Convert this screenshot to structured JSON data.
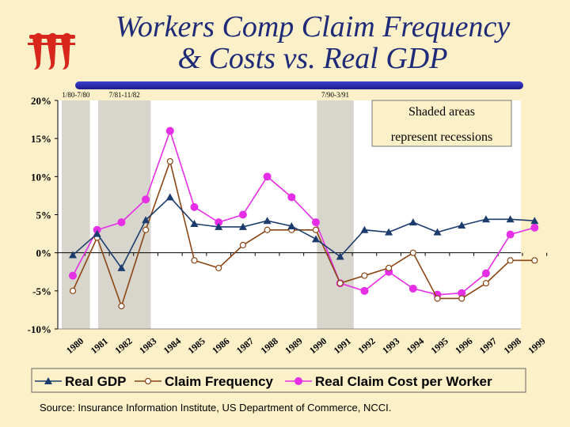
{
  "title": {
    "line1": "Workers Comp Claim Frequency",
    "line2": "& Costs vs. Real GDP"
  },
  "logo": {
    "name": "iii-logo",
    "color": "#d9261c"
  },
  "source": "Source: Insurance Information Institute, US Department of Commerce, NCCI.",
  "shaded_note": {
    "line1": "Shaded areas",
    "line2": "represent recessions"
  },
  "chart_data": {
    "type": "line",
    "title": "Workers Comp Claim Frequency & Costs vs. Real GDP",
    "categories": [
      "1980",
      "1981",
      "1982",
      "1983",
      "1984",
      "1985",
      "1986",
      "1987",
      "1988",
      "1989",
      "1990",
      "1991",
      "1992",
      "1993",
      "1994",
      "1995",
      "1996",
      "1997",
      "1998",
      "1999"
    ],
    "ylim": [
      -10,
      20
    ],
    "yticks": [
      {
        "v": 20,
        "label": "20%"
      },
      {
        "v": 15,
        "label": "15%"
      },
      {
        "v": 10,
        "label": "10%"
      },
      {
        "v": 5,
        "label": "5%"
      },
      {
        "v": 0,
        "label": "0%"
      },
      {
        "v": -5,
        "label": "-5%"
      },
      {
        "v": -10,
        "label": "-10%"
      }
    ],
    "recessions": [
      {
        "label": "1/80-7/80",
        "start": 0,
        "end": 0.25
      },
      {
        "label": "7/81-11/82",
        "start": 1.5,
        "end": 2.75
      },
      {
        "label": "7/90-3/91",
        "start": 10.5,
        "end": 11.1
      }
    ],
    "series": [
      {
        "name": "Real GDP",
        "color": "#1c3c6e",
        "marker": "triangle",
        "values": [
          -0.3,
          2.5,
          -2.0,
          4.3,
          7.3,
          3.8,
          3.4,
          3.4,
          4.2,
          3.5,
          1.8,
          -0.5,
          3.0,
          2.7,
          4.0,
          2.7,
          3.6,
          4.4,
          4.4,
          4.2
        ]
      },
      {
        "name": "Claim Frequency",
        "color": "#8b4513",
        "marker": "circle-open",
        "values": [
          -5.0,
          2.0,
          -7.0,
          3.0,
          12.0,
          -1.0,
          -2.0,
          1.0,
          3.0,
          3.0,
          3.0,
          -4.0,
          -3.0,
          -2.0,
          0.0,
          -6.0,
          -6.0,
          -4.0,
          -1.0,
          -1.0
        ]
      },
      {
        "name": "Real Claim Cost per Worker",
        "color": "#e62ee6",
        "marker": "circle",
        "values": [
          -3.0,
          3.0,
          4.0,
          7.0,
          16.0,
          6.0,
          4.0,
          5.0,
          10.0,
          7.3,
          4.0,
          -4.0,
          -5.0,
          -2.5,
          -4.7,
          -5.5,
          -5.3,
          -2.7,
          2.4,
          3.3
        ]
      }
    ]
  }
}
